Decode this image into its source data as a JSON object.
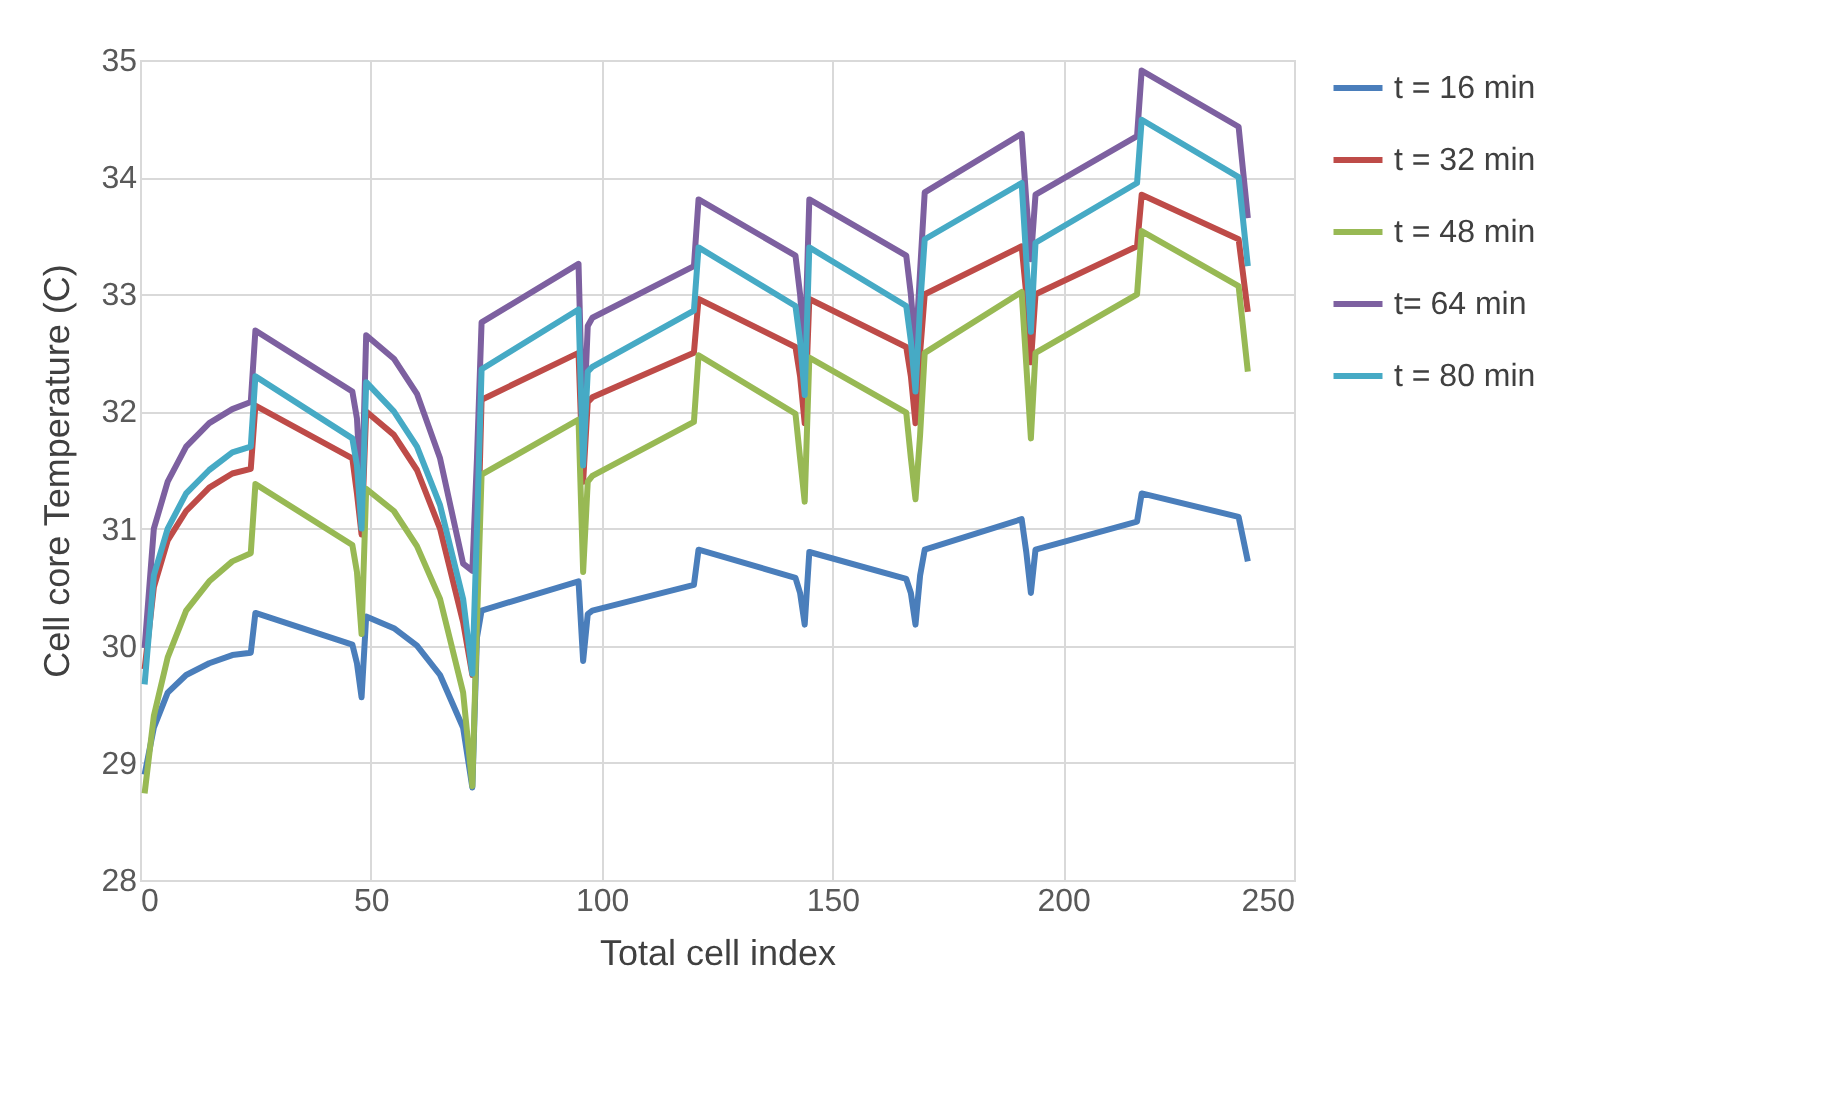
{
  "chart_data": {
    "type": "line",
    "xlabel": "Total cell index",
    "ylabel": "Cell  core Temperature  (C)",
    "x": [
      1,
      3,
      6,
      10,
      15,
      20,
      24,
      25,
      46,
      47,
      48,
      49,
      55,
      60,
      65,
      70,
      72,
      73,
      74,
      95,
      96,
      97,
      98,
      120,
      121,
      142,
      143,
      144,
      145,
      166,
      167,
      168,
      169,
      170,
      191,
      192,
      193,
      194,
      216,
      217,
      238,
      240
    ],
    "series": [
      {
        "name": "t = 16 min",
        "color": "#4a7ebb",
        "values": [
          28.9,
          29.3,
          29.6,
          29.75,
          29.85,
          29.92,
          29.94,
          30.28,
          30.01,
          29.85,
          29.56,
          30.25,
          30.15,
          30.0,
          29.75,
          29.3,
          28.79,
          30.07,
          30.3,
          30.55,
          29.87,
          30.27,
          30.3,
          30.52,
          30.82,
          30.58,
          30.45,
          30.18,
          30.8,
          30.57,
          30.45,
          30.18,
          30.6,
          30.82,
          31.08,
          30.8,
          30.45,
          30.82,
          31.06,
          31.3,
          31.1,
          30.72
        ]
      },
      {
        "name": "t = 32 min",
        "color": "#be4b48",
        "values": [
          29.8,
          30.5,
          30.9,
          31.15,
          31.35,
          31.47,
          31.51,
          32.05,
          31.6,
          31.3,
          30.95,
          32.0,
          31.8,
          31.5,
          31.0,
          30.2,
          29.75,
          30.6,
          32.1,
          32.5,
          31.4,
          32.08,
          32.12,
          32.5,
          32.96,
          32.55,
          32.3,
          31.9,
          32.96,
          32.55,
          32.3,
          31.9,
          32.5,
          33.0,
          33.41,
          33.0,
          32.42,
          33.0,
          33.41,
          33.85,
          33.47,
          32.85
        ]
      },
      {
        "name": "t = 48 min",
        "color": "#98b954",
        "values": [
          28.74,
          29.4,
          29.9,
          30.3,
          30.55,
          30.72,
          30.79,
          31.38,
          30.86,
          30.63,
          30.1,
          31.34,
          31.15,
          30.85,
          30.4,
          29.6,
          28.8,
          30.2,
          31.46,
          31.93,
          30.63,
          31.4,
          31.45,
          31.91,
          32.48,
          31.98,
          31.6,
          31.23,
          32.46,
          31.99,
          31.6,
          31.25,
          31.8,
          32.5,
          33.02,
          32.4,
          31.77,
          32.5,
          33.0,
          33.54,
          33.07,
          32.34
        ]
      },
      {
        "name": "t= 64 min",
        "color": "#7d60a0",
        "values": [
          29.98,
          31.0,
          31.4,
          31.7,
          31.9,
          32.02,
          32.08,
          32.69,
          32.17,
          31.94,
          31.2,
          32.65,
          32.45,
          32.15,
          31.6,
          30.7,
          30.64,
          31.6,
          32.76,
          33.26,
          31.77,
          32.73,
          32.8,
          33.24,
          33.81,
          33.33,
          33.0,
          32.5,
          33.81,
          33.33,
          33.0,
          32.5,
          33.2,
          33.87,
          34.37,
          33.8,
          33.3,
          33.85,
          34.35,
          34.91,
          34.43,
          33.65
        ]
      },
      {
        "name": "t = 80 min",
        "color": "#46aac5",
        "values": [
          29.67,
          30.6,
          31.0,
          31.3,
          31.5,
          31.65,
          31.7,
          32.3,
          31.77,
          31.54,
          31.0,
          32.25,
          32.0,
          31.7,
          31.2,
          30.4,
          29.76,
          31.0,
          32.36,
          32.87,
          31.54,
          32.34,
          32.38,
          32.86,
          33.4,
          32.9,
          32.6,
          32.14,
          33.4,
          32.9,
          32.6,
          32.17,
          32.9,
          33.47,
          33.95,
          33.3,
          32.68,
          33.44,
          33.95,
          34.49,
          34.0,
          33.24
        ]
      }
    ],
    "xlim": [
      0,
      250
    ],
    "xticks": [
      0,
      50,
      100,
      150,
      200,
      250
    ],
    "ylim": [
      28,
      35
    ],
    "yticks": [
      28,
      29,
      30,
      31,
      32,
      33,
      34,
      35
    ],
    "grid": true,
    "legend": "right",
    "marker": "none",
    "line_style": "solid"
  }
}
